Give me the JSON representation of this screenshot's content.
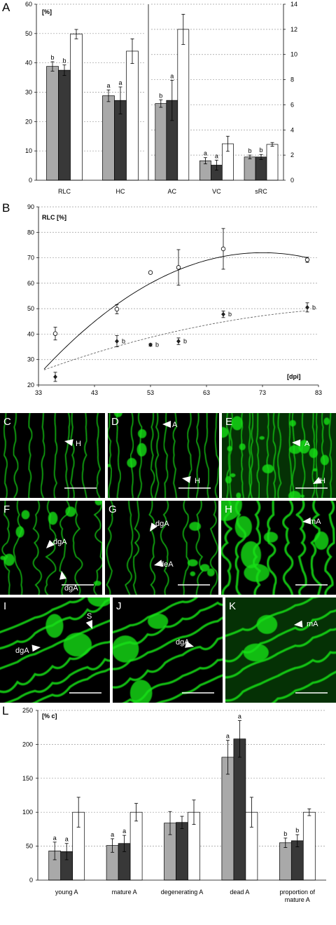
{
  "colors": {
    "light": "#a9a9a9",
    "dark": "#383838",
    "white": "#ffffff",
    "green": "#18e018",
    "bg": "#000000"
  },
  "panelA": {
    "letter": "A",
    "unit": "[%]",
    "left": {
      "yticks": [
        "0",
        "10",
        "20",
        "30",
        "40",
        "50",
        "60"
      ],
      "ylim": [
        0,
        60
      ],
      "groups": [
        {
          "label": "RLC",
          "values": [
            38.8,
            37.5,
            49.8
          ],
          "errors": [
            1.6,
            1.8,
            1.6
          ],
          "sig": [
            "b",
            "b",
            ""
          ]
        },
        {
          "label": "HC",
          "values": [
            28.8,
            27.2,
            44.0
          ],
          "errors": [
            2.0,
            4.6,
            4.2
          ],
          "sig": [
            "a",
            "a",
            ""
          ]
        }
      ]
    },
    "right": {
      "yticks": [
        "0",
        "2",
        "4",
        "6",
        "8",
        "10",
        "12",
        "14"
      ],
      "ylim": [
        0,
        14
      ],
      "groups": [
        {
          "label": "AC",
          "values": [
            6.1,
            6.35,
            12.0
          ],
          "errors": [
            0.3,
            1.6,
            1.2
          ],
          "sig": [
            "b",
            "a",
            ""
          ]
        },
        {
          "label": "VC",
          "values": [
            1.55,
            1.2,
            2.9
          ],
          "errors": [
            0.25,
            0.4,
            0.6
          ],
          "sig": [
            "a",
            "a",
            ""
          ]
        },
        {
          "label": "sRC",
          "values": [
            1.85,
            1.85,
            2.85
          ],
          "errors": [
            0.15,
            0.2,
            0.15
          ],
          "sig": [
            "b",
            "b",
            ""
          ]
        }
      ]
    }
  },
  "panelB": {
    "letter": "B",
    "ylabel": "RLC [%]",
    "xlabel": "[dpi]",
    "xticks": [
      "33",
      "43",
      "53",
      "63",
      "73",
      "83"
    ],
    "yticks": [
      "20",
      "30",
      "40",
      "50",
      "60",
      "70",
      "80",
      "90"
    ],
    "xlim": [
      33,
      83
    ],
    "ylim": [
      20,
      90
    ],
    "open": [
      {
        "x": 36,
        "y": 40.2,
        "e": 2.5
      },
      {
        "x": 47,
        "y": 49.8,
        "e": 1.8
      },
      {
        "x": 53,
        "y": 64.2,
        "e": 0
      },
      {
        "x": 58,
        "y": 66.2,
        "e": 7.0
      },
      {
        "x": 66,
        "y": 73.5,
        "e": 8.0
      },
      {
        "x": 81,
        "y": 69.2,
        "e": 1.0
      }
    ],
    "filled": [
      {
        "x": 36,
        "y": 23.2,
        "e": 1.8,
        "sig": ""
      },
      {
        "x": 47,
        "y": 37.2,
        "e": 2.2,
        "sig": "b"
      },
      {
        "x": 53,
        "y": 35.8,
        "e": 0.5,
        "sig": "b"
      },
      {
        "x": 58,
        "y": 37.2,
        "e": 1.3,
        "sig": "b"
      },
      {
        "x": 66,
        "y": 47.8,
        "e": 1.3,
        "sig": "b"
      },
      {
        "x": 81,
        "y": 50.5,
        "e": 1.8,
        "sig": "b"
      }
    ],
    "fitOpen": {
      "a": -0.0301,
      "b": 4.393,
      "c": -88.3
    },
    "fitFilled": {
      "a": -0.00632,
      "b": 1.2217,
      "c": -8.29
    }
  },
  "micrographs": [
    {
      "letter": "C",
      "labels": [
        "H"
      ]
    },
    {
      "letter": "D",
      "labels": [
        "A",
        "H"
      ]
    },
    {
      "letter": "E",
      "labels": [
        "A",
        "H"
      ]
    },
    {
      "letter": "F",
      "labels": [
        "dgA",
        "dgA"
      ]
    },
    {
      "letter": "G",
      "labels": [
        "dgA",
        "deA"
      ]
    },
    {
      "letter": "H",
      "labels": [
        "mA"
      ]
    },
    {
      "letter": "I",
      "labels": [
        "S",
        "dgA"
      ]
    },
    {
      "letter": "J",
      "labels": [
        "dgA"
      ]
    },
    {
      "letter": "K",
      "labels": [
        "mA"
      ]
    }
  ],
  "panelL": {
    "letter": "L",
    "unit": "[% c]",
    "yticks": [
      "0",
      "50",
      "100",
      "150",
      "200",
      "250"
    ],
    "ylim": [
      0,
      250
    ],
    "groups": [
      {
        "label": "young A",
        "values": [
          43,
          42,
          100
        ],
        "errors": [
          13,
          12,
          22
        ],
        "sig": [
          "a",
          "a",
          ""
        ]
      },
      {
        "label": "mature A",
        "values": [
          51,
          54,
          100
        ],
        "errors": [
          10,
          12,
          13
        ],
        "sig": [
          "a",
          "a",
          ""
        ]
      },
      {
        "label": "degenerating A",
        "values": [
          84,
          85,
          100
        ],
        "errors": [
          17,
          9,
          18
        ],
        "sig": [
          "",
          "",
          ""
        ]
      },
      {
        "label": "dead A",
        "values": [
          181,
          208,
          100
        ],
        "errors": [
          25,
          27,
          22
        ],
        "sig": [
          "a",
          "a",
          ""
        ]
      },
      {
        "label": "proportion of mature A",
        "values": [
          55,
          58,
          100
        ],
        "errors": [
          7,
          9,
          5
        ],
        "sig": [
          "b",
          "b",
          ""
        ]
      }
    ]
  }
}
